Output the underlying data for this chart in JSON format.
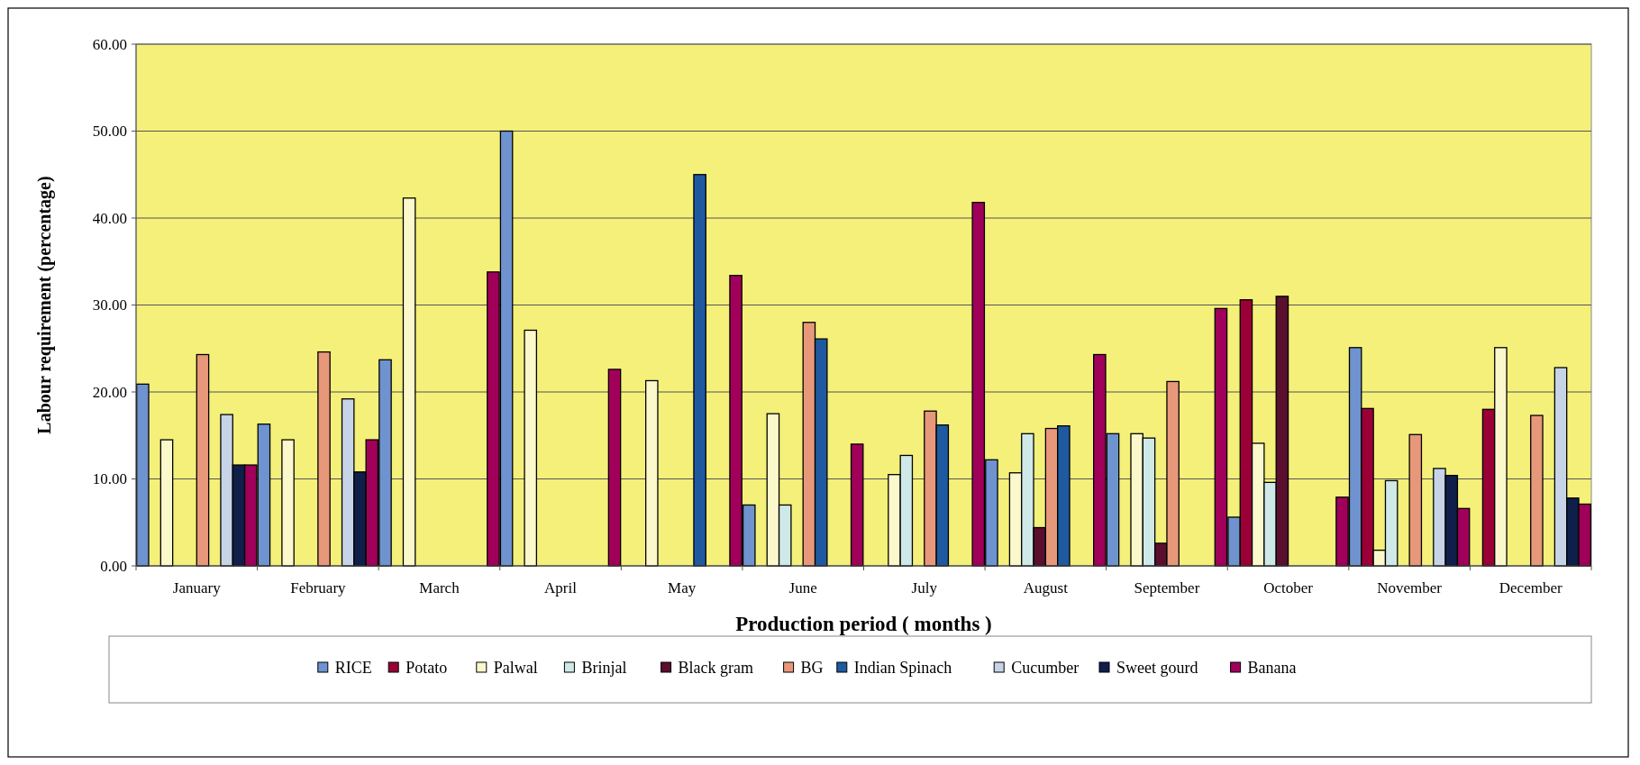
{
  "chart_data": {
    "type": "bar",
    "xlabel": "Production period ( months )",
    "ylabel": "Labour requirement (percentage)",
    "categories": [
      "January",
      "February",
      "March",
      "April",
      "May",
      "June",
      "July",
      "August",
      "September",
      "October",
      "November",
      "December"
    ],
    "series": [
      {
        "name": "RICE",
        "color": "#6f93cf",
        "values": [
          20.9,
          16.3,
          23.7,
          50.0,
          null,
          7.0,
          null,
          12.2,
          15.2,
          5.6,
          25.1,
          null
        ]
      },
      {
        "name": "Potato",
        "color": "#9a0036",
        "values": [
          null,
          null,
          null,
          null,
          null,
          null,
          null,
          null,
          null,
          30.6,
          18.1,
          18.0
        ]
      },
      {
        "name": "Palwal",
        "color": "#fbf8cc",
        "values": [
          14.5,
          14.5,
          42.3,
          27.1,
          21.3,
          17.5,
          10.5,
          10.7,
          15.2,
          14.1,
          1.8,
          25.1
        ]
      },
      {
        "name": "Brinjal",
        "color": "#cfe9e8",
        "values": [
          null,
          null,
          null,
          null,
          null,
          7.0,
          12.7,
          15.2,
          14.7,
          9.6,
          9.8,
          null
        ]
      },
      {
        "name": "Black gram",
        "color": "#5a0f2e",
        "values": [
          null,
          null,
          null,
          null,
          null,
          null,
          null,
          4.4,
          2.6,
          31.0,
          null,
          null
        ]
      },
      {
        "name": "BG",
        "color": "#e8987a",
        "values": [
          24.3,
          24.6,
          null,
          null,
          null,
          28.0,
          17.8,
          15.8,
          21.2,
          null,
          15.1,
          17.3
        ]
      },
      {
        "name": "Indian Spinach",
        "color": "#1f5aa0",
        "values": [
          null,
          null,
          null,
          null,
          45.0,
          26.1,
          16.2,
          16.1,
          null,
          null,
          null,
          null
        ]
      },
      {
        "name": "Cucumber",
        "color": "#c7d3e6",
        "values": [
          17.4,
          19.2,
          null,
          null,
          null,
          null,
          null,
          null,
          null,
          null,
          11.2,
          22.8
        ]
      },
      {
        "name": "Sweet gourd",
        "color": "#0f1f4a",
        "values": [
          11.6,
          10.8,
          null,
          null,
          null,
          null,
          null,
          null,
          null,
          null,
          10.4,
          7.8
        ]
      },
      {
        "name": "Banana",
        "color": "#a0005a",
        "values": [
          11.6,
          14.5,
          33.8,
          22.6,
          33.4,
          14.0,
          41.8,
          24.3,
          29.6,
          7.9,
          6.6,
          7.1
        ]
      }
    ],
    "ylim": [
      0,
      60
    ],
    "yticks": [
      {
        "value": 0,
        "label": "0.00"
      },
      {
        "value": 10,
        "label": "10.00"
      },
      {
        "value": 20,
        "label": "20.00"
      },
      {
        "value": 30,
        "label": "30.00"
      },
      {
        "value": 40,
        "label": "40.00"
      },
      {
        "value": 50,
        "label": "50.00"
      },
      {
        "value": 60,
        "label": "60.00"
      }
    ],
    "grid": "y",
    "legend": "bottom"
  }
}
